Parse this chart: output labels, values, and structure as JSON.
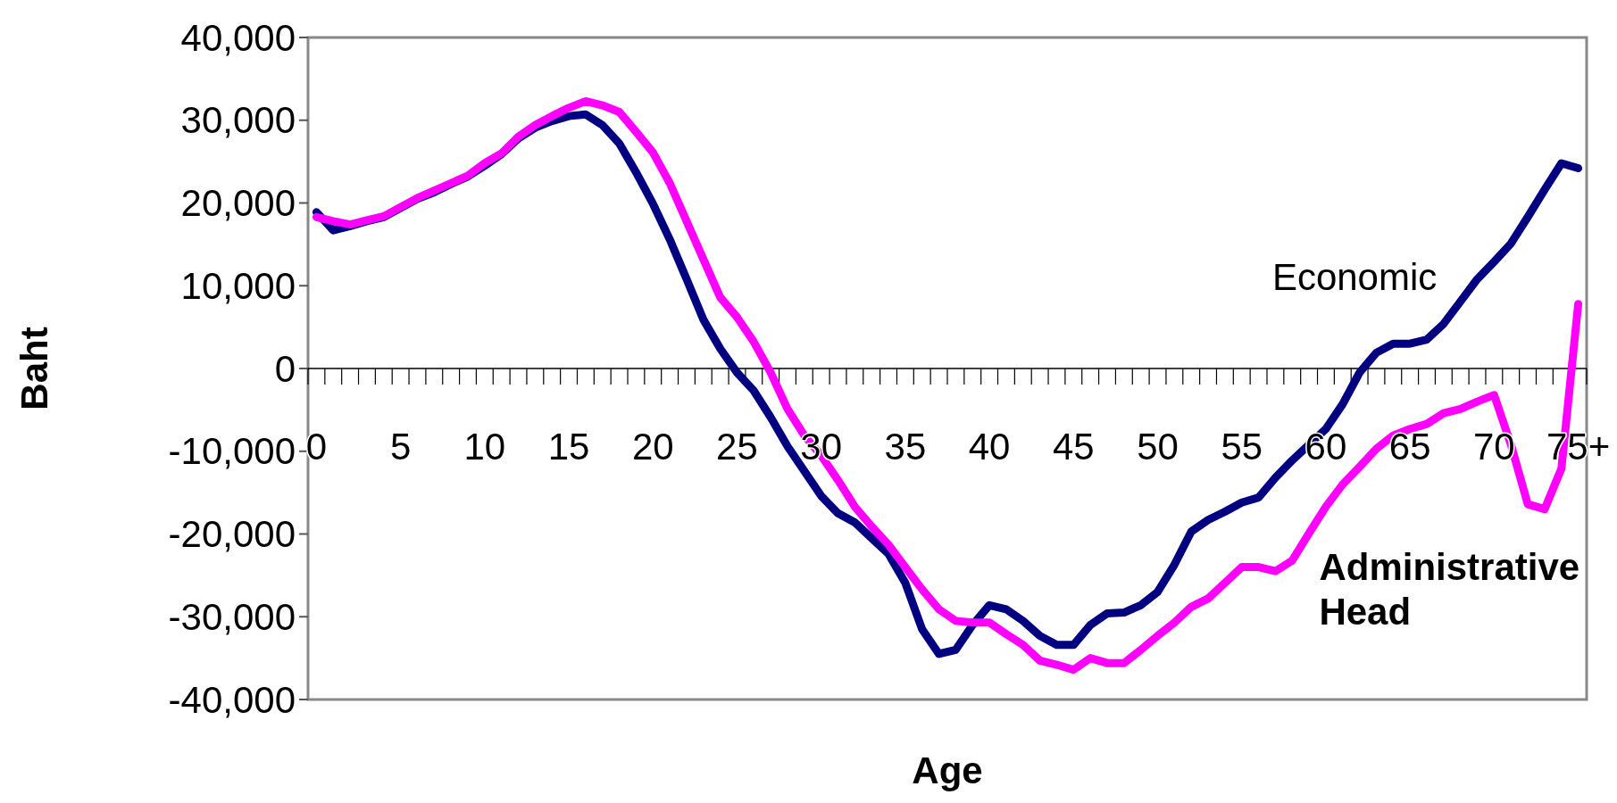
{
  "chart_data": {
    "type": "line",
    "xlabel": "Age",
    "ylabel": "Baht",
    "categories": [
      "0",
      null,
      null,
      null,
      null,
      "5",
      null,
      null,
      null,
      null,
      "10",
      null,
      null,
      null,
      null,
      "15",
      null,
      null,
      null,
      null,
      "20",
      null,
      null,
      null,
      null,
      "25",
      null,
      null,
      null,
      null,
      "30",
      null,
      null,
      null,
      null,
      "35",
      null,
      null,
      null,
      null,
      "40",
      null,
      null,
      null,
      null,
      "45",
      null,
      null,
      null,
      null,
      "50",
      null,
      null,
      null,
      null,
      "55",
      null,
      null,
      null,
      null,
      "60",
      null,
      null,
      null,
      null,
      "65",
      null,
      null,
      null,
      null,
      "70",
      null,
      null,
      null,
      null,
      "75+"
    ],
    "series": [
      {
        "name": "Economic",
        "color": "#000080",
        "values": [
          18900,
          16700,
          17200,
          17800,
          18300,
          19400,
          20500,
          21300,
          22300,
          23200,
          24500,
          25900,
          27800,
          29100,
          29900,
          30500,
          30700,
          29400,
          27200,
          23700,
          19900,
          15600,
          10800,
          5900,
          2400,
          -500,
          -2700,
          -5900,
          -9400,
          -12400,
          -15400,
          -17500,
          -18600,
          -20500,
          -22400,
          -25900,
          -31500,
          -34500,
          -34000,
          -31000,
          -28600,
          -29100,
          -30500,
          -32300,
          -33400,
          -33400,
          -31000,
          -29600,
          -29500,
          -28600,
          -27000,
          -23700,
          -19700,
          -18300,
          -17300,
          -16200,
          -15600,
          -13200,
          -11100,
          -9200,
          -7300,
          -4300,
          -500,
          1900,
          3000,
          3000,
          3500,
          5400,
          8100,
          10800,
          12900,
          15100,
          18300,
          21600,
          24800,
          24200
        ]
      },
      {
        "name": "Administrative Head",
        "color": "#ff00ff",
        "values": [
          18300,
          17800,
          17400,
          17900,
          18400,
          19500,
          20600,
          21500,
          22400,
          23300,
          24800,
          26000,
          28000,
          29400,
          30500,
          31500,
          32300,
          31800,
          31000,
          28600,
          26100,
          22400,
          17800,
          13200,
          8600,
          6200,
          3200,
          -500,
          -4900,
          -8100,
          -10500,
          -13500,
          -16700,
          -19100,
          -21300,
          -24000,
          -26700,
          -29100,
          -30500,
          -30700,
          -30700,
          -32100,
          -33400,
          -35300,
          -35800,
          -36400,
          -35000,
          -35600,
          -35600,
          -34000,
          -32300,
          -30700,
          -28800,
          -27800,
          -25900,
          -24000,
          -24000,
          -24500,
          -23200,
          -19900,
          -16700,
          -14000,
          -11900,
          -9700,
          -8100,
          -7300,
          -6700,
          -5400,
          -4900,
          -4000,
          -3200,
          -9200,
          -16400,
          -17000,
          -12100,
          7800
        ]
      }
    ],
    "ylim": [
      -40000,
      40000
    ],
    "yticks": [
      {
        "value": -40000,
        "label": "-40,000"
      },
      {
        "value": -30000,
        "label": "-30,000"
      },
      {
        "value": -20000,
        "label": "-20,000"
      },
      {
        "value": -10000,
        "label": "-10,000"
      },
      0,
      {
        "value": 10000,
        "label": "10,000"
      },
      {
        "value": 20000,
        "label": "20,000"
      },
      {
        "value": 30000,
        "label": "30,000"
      },
      {
        "value": 40000,
        "label": "40,000"
      }
    ],
    "grid": false,
    "legend": false,
    "marker": "none",
    "line_style": "solid"
  }
}
